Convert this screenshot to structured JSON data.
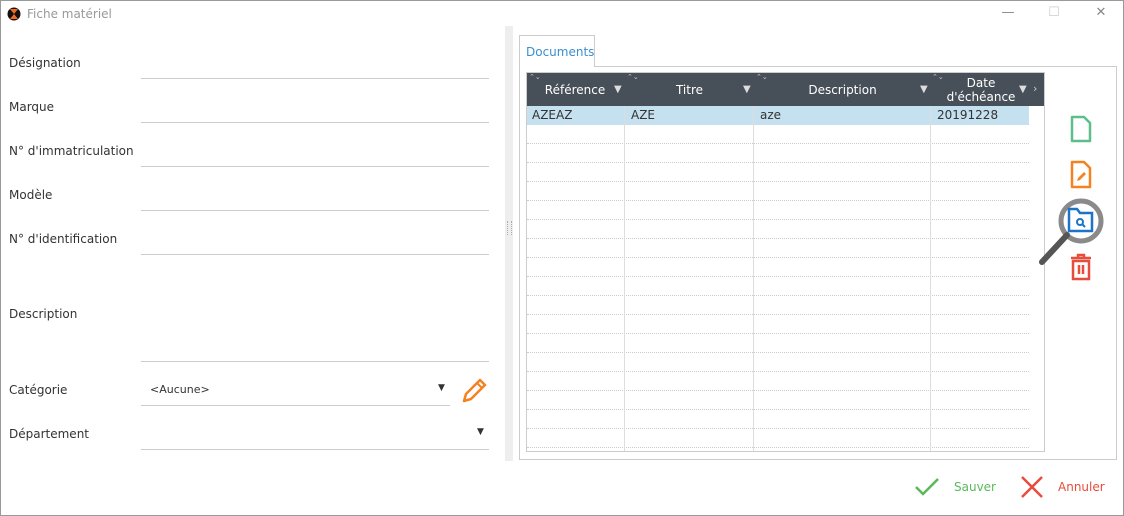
{
  "window": {
    "title": "Fiche matériel",
    "icons": [
      "app-logo-icon",
      "minimize-icon",
      "maximize-icon",
      "close-icon"
    ]
  },
  "form": {
    "designation": "Désignation",
    "marque": "Marque",
    "immatriculation": "N° d'immatriculation",
    "modele": "Modèle",
    "identification": "N° d'identification",
    "description": "Description",
    "categorie": "Catégorie",
    "categorie_value": "<Aucune>",
    "departement": "Département"
  },
  "documents": {
    "tab": "Documents",
    "columns": [
      "Référence",
      "Titre",
      "Description",
      "Date d'échéance"
    ],
    "rows": [
      [
        "AZEAZ",
        "AZE",
        "aze",
        "20191228"
      ]
    ]
  },
  "actions": {
    "save": "Sauver",
    "cancel": "Annuler"
  },
  "colors": {
    "accent": "#3a8fd0",
    "header": "#474f59",
    "selected_row": "#c5e0ee",
    "save": "#5cb85c",
    "cancel": "#e74c3c",
    "edit": "#f58220",
    "new": "#5cbf8a"
  }
}
